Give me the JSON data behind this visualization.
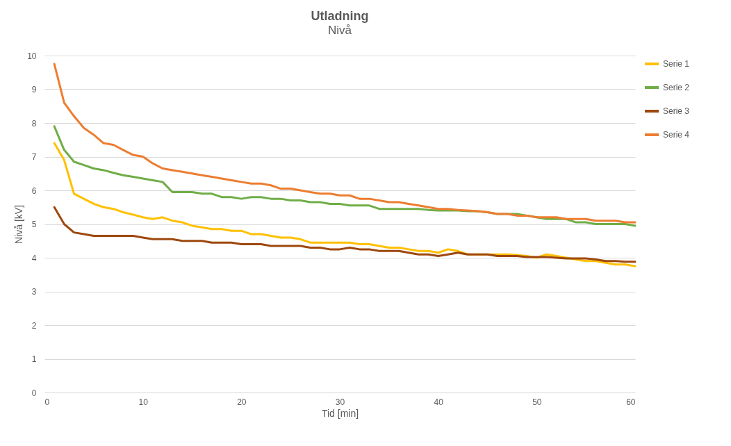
{
  "chart_data": {
    "type": "line",
    "title": "Utladning",
    "subtitle": "Nivå",
    "xlabel": "Tid [min]",
    "ylabel": "Nivå [kV]",
    "x": [
      1,
      2,
      3,
      4,
      5,
      6,
      7,
      8,
      9,
      10,
      11,
      12,
      13,
      14,
      15,
      16,
      17,
      18,
      19,
      20,
      21,
      22,
      23,
      24,
      25,
      26,
      27,
      28,
      29,
      30,
      31,
      32,
      33,
      34,
      35,
      36,
      37,
      38,
      39,
      40,
      41,
      42,
      43,
      44,
      45,
      46,
      47,
      48,
      49,
      50,
      51,
      52,
      53,
      54,
      55,
      56,
      57,
      58,
      59,
      60
    ],
    "series": [
      {
        "name": "Serie 1",
        "color": "#ffc000",
        "values": [
          7.4,
          6.9,
          5.9,
          5.75,
          5.6,
          5.5,
          5.45,
          5.35,
          5.28,
          5.2,
          5.15,
          5.2,
          5.1,
          5.05,
          4.95,
          4.9,
          4.85,
          4.85,
          4.8,
          4.8,
          4.7,
          4.7,
          4.65,
          4.6,
          4.6,
          4.55,
          4.45,
          4.45,
          4.45,
          4.45,
          4.45,
          4.4,
          4.4,
          4.35,
          4.3,
          4.3,
          4.25,
          4.2,
          4.2,
          4.15,
          4.25,
          4.2,
          4.1,
          4.1,
          4.1,
          4.1,
          4.1,
          4.08,
          4.05,
          4.0,
          4.1,
          4.05,
          4.0,
          3.95,
          3.9,
          3.9,
          3.85,
          3.8,
          3.8,
          3.75
        ]
      },
      {
        "name": "Serie 2",
        "color": "#70ad47",
        "values": [
          7.9,
          7.2,
          6.85,
          6.75,
          6.65,
          6.6,
          6.52,
          6.45,
          6.4,
          6.35,
          6.3,
          6.25,
          5.95,
          5.95,
          5.95,
          5.9,
          5.9,
          5.8,
          5.8,
          5.75,
          5.8,
          5.8,
          5.75,
          5.75,
          5.7,
          5.7,
          5.65,
          5.65,
          5.6,
          5.6,
          5.55,
          5.55,
          5.55,
          5.45,
          5.45,
          5.45,
          5.45,
          5.45,
          5.42,
          5.4,
          5.4,
          5.4,
          5.38,
          5.38,
          5.35,
          5.3,
          5.3,
          5.3,
          5.25,
          5.2,
          5.15,
          5.15,
          5.15,
          5.05,
          5.05,
          5.0,
          5.0,
          5.0,
          5.0,
          4.95
        ]
      },
      {
        "name": "Serie 3",
        "color": "#9e480e",
        "values": [
          5.5,
          5.0,
          4.75,
          4.7,
          4.65,
          4.65,
          4.65,
          4.65,
          4.65,
          4.6,
          4.55,
          4.55,
          4.55,
          4.5,
          4.5,
          4.5,
          4.45,
          4.45,
          4.45,
          4.4,
          4.4,
          4.4,
          4.35,
          4.35,
          4.35,
          4.35,
          4.3,
          4.3,
          4.25,
          4.25,
          4.3,
          4.25,
          4.25,
          4.2,
          4.2,
          4.2,
          4.15,
          4.1,
          4.1,
          4.05,
          4.1,
          4.15,
          4.1,
          4.1,
          4.1,
          4.05,
          4.05,
          4.05,
          4.02,
          4.02,
          4.02,
          4.0,
          3.98,
          3.98,
          3.98,
          3.95,
          3.9,
          3.9,
          3.88,
          3.88
        ]
      },
      {
        "name": "Serie 4",
        "color": "#ed7d31",
        "values": [
          9.75,
          8.6,
          8.2,
          7.85,
          7.65,
          7.4,
          7.35,
          7.2,
          7.05,
          7.0,
          6.8,
          6.65,
          6.6,
          6.55,
          6.5,
          6.45,
          6.4,
          6.35,
          6.3,
          6.25,
          6.2,
          6.2,
          6.15,
          6.05,
          6.05,
          6.0,
          5.95,
          5.9,
          5.9,
          5.85,
          5.85,
          5.75,
          5.75,
          5.7,
          5.65,
          5.65,
          5.6,
          5.55,
          5.5,
          5.45,
          5.45,
          5.42,
          5.4,
          5.38,
          5.35,
          5.3,
          5.3,
          5.25,
          5.25,
          5.2,
          5.2,
          5.2,
          5.15,
          5.15,
          5.15,
          5.1,
          5.1,
          5.1,
          5.05,
          5.05
        ]
      }
    ],
    "xlim": [
      0,
      60
    ],
    "xticks": [
      0,
      10,
      20,
      30,
      40,
      50,
      60
    ],
    "ylim": [
      0,
      10
    ],
    "yticks": [
      0,
      1,
      2,
      3,
      4,
      5,
      6,
      7,
      8,
      9,
      10
    ],
    "grid": "y",
    "legend": "right",
    "marker": "none",
    "line_style": "solid"
  }
}
